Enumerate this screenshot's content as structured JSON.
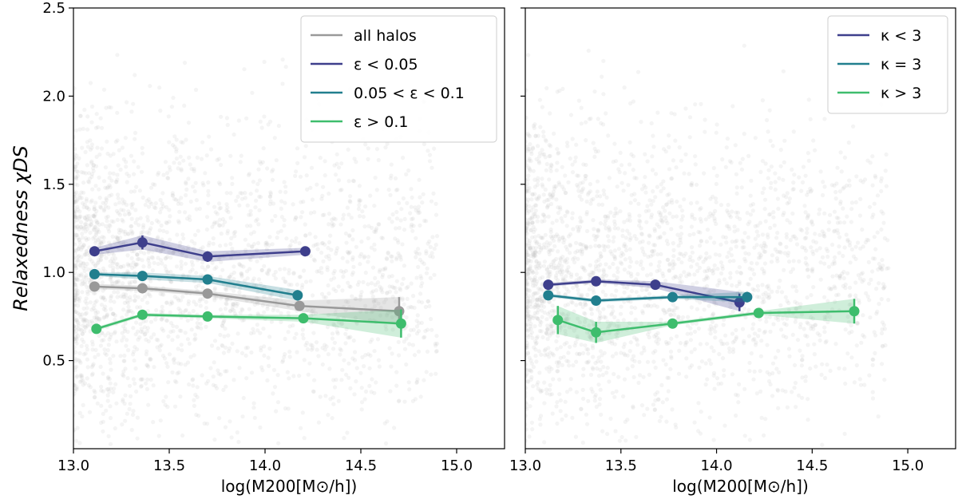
{
  "chart_data": [
    {
      "type": "line",
      "panel": "left",
      "xlabel": "log(M200[M⊙/h])",
      "ylabel": "Relaxedness χDS",
      "xlim": [
        13.0,
        15.25
      ],
      "ylim": [
        0.0,
        2.5
      ],
      "xticks": [
        "13.0",
        "13.5",
        "14.0",
        "14.5",
        "15.0"
      ],
      "yticks": [
        "0.5",
        "1.0",
        "1.5",
        "2.0",
        "2.5"
      ],
      "legend_position": "top-right",
      "series": [
        {
          "name": "all halos",
          "color": "#999999",
          "x": [
            13.11,
            13.36,
            13.7,
            14.18,
            14.7
          ],
          "y": [
            0.92,
            0.91,
            0.88,
            0.81,
            0.78
          ],
          "yerr": [
            0.01,
            0.01,
            0.01,
            0.02,
            0.08
          ],
          "band_low": [
            0.905,
            0.895,
            0.865,
            0.78,
            0.7
          ],
          "band_high": [
            0.935,
            0.925,
            0.895,
            0.84,
            0.86
          ]
        },
        {
          "name": "ε < 0.05",
          "color": "#3e3f8c",
          "x": [
            13.11,
            13.36,
            13.7,
            14.21
          ],
          "y": [
            1.12,
            1.17,
            1.09,
            1.12
          ],
          "yerr": [
            0.02,
            0.04,
            0.03,
            0.02
          ],
          "band_low": [
            1.1,
            1.13,
            1.06,
            1.1
          ],
          "band_high": [
            1.14,
            1.21,
            1.12,
            1.14
          ]
        },
        {
          "name": "0.05 < ε < 0.1",
          "color": "#217f8e",
          "x": [
            13.11,
            13.36,
            13.7,
            14.17
          ],
          "y": [
            0.99,
            0.98,
            0.96,
            0.87
          ],
          "yerr": [
            0.01,
            0.02,
            0.02,
            0.03
          ],
          "band_low": [
            0.98,
            0.96,
            0.94,
            0.84
          ],
          "band_high": [
            1.0,
            1.0,
            0.98,
            0.9
          ]
        },
        {
          "name": "ε > 0.1",
          "color": "#3ebd6d",
          "x": [
            13.12,
            13.36,
            13.7,
            14.2,
            14.71
          ],
          "y": [
            0.68,
            0.76,
            0.75,
            0.74,
            0.71
          ],
          "yerr": [
            0.01,
            0.01,
            0.01,
            0.01,
            0.08
          ],
          "band_low": [
            0.67,
            0.75,
            0.74,
            0.72,
            0.63
          ],
          "band_high": [
            0.69,
            0.77,
            0.76,
            0.76,
            0.79
          ]
        }
      ]
    },
    {
      "type": "line",
      "panel": "right",
      "xlabel": "log(M200[M⊙/h])",
      "ylabel": "",
      "xlim": [
        13.0,
        15.25
      ],
      "ylim": [
        0.0,
        2.5
      ],
      "xticks": [
        "13.0",
        "13.5",
        "14.0",
        "14.5",
        "15.0"
      ],
      "yticks": [
        "",
        "",
        "",
        "",
        ""
      ],
      "legend_position": "top-right",
      "series": [
        {
          "name": "κ < 3",
          "color": "#3e3f8c",
          "x": [
            13.12,
            13.37,
            13.68,
            14.12
          ],
          "y": [
            0.93,
            0.95,
            0.93,
            0.83
          ],
          "yerr": [
            0.01,
            0.01,
            0.02,
            0.05
          ],
          "band_low": [
            0.92,
            0.94,
            0.91,
            0.78
          ],
          "band_high": [
            0.94,
            0.96,
            0.95,
            0.89
          ]
        },
        {
          "name": "κ = 3",
          "color": "#217f8e",
          "x": [
            13.12,
            13.37,
            13.77,
            14.16
          ],
          "y": [
            0.87,
            0.84,
            0.86,
            0.86
          ],
          "yerr": [
            0.01,
            0.01,
            0.01,
            0.03
          ],
          "band_low": [
            0.86,
            0.83,
            0.85,
            0.83
          ],
          "band_high": [
            0.88,
            0.85,
            0.87,
            0.89
          ]
        },
        {
          "name": "κ > 3",
          "color": "#3ebd6d",
          "x": [
            13.17,
            13.37,
            13.77,
            14.22,
            14.72
          ],
          "y": [
            0.73,
            0.66,
            0.71,
            0.77,
            0.78
          ],
          "yerr": [
            0.08,
            0.06,
            0.01,
            0.01,
            0.07
          ],
          "band_low": [
            0.65,
            0.6,
            0.7,
            0.76,
            0.71
          ],
          "band_high": [
            0.81,
            0.72,
            0.72,
            0.78,
            0.85
          ]
        }
      ]
    }
  ]
}
